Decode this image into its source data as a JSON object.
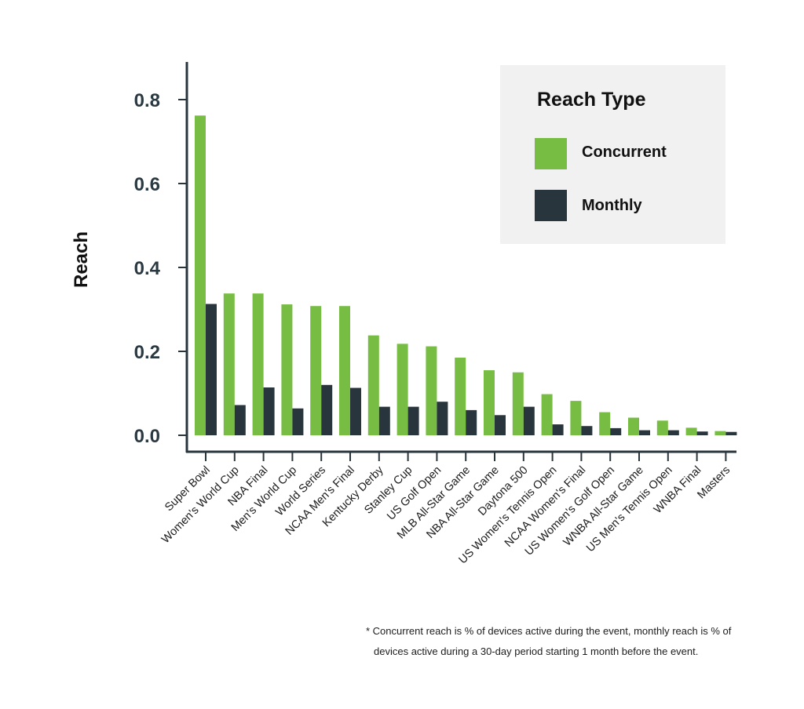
{
  "chart_data": {
    "type": "bar",
    "ylabel": "Reach",
    "xlabel": "",
    "ylim": [
      0,
      0.88
    ],
    "yticks": [
      "0.0",
      "0.2",
      "0.4",
      "0.6",
      "0.8"
    ],
    "ytick_values": [
      0.0,
      0.2,
      0.4,
      0.6,
      0.8
    ],
    "grid": false,
    "legend": {
      "title": "Reach Type",
      "placement": "top-right"
    },
    "categories": [
      "Super Bowl",
      "Women's World Cup",
      "NBA Final",
      "Men's World Cup",
      "World Series",
      "NCAA Men's Final",
      "Kentucky Derby",
      "Stanley Cup",
      "US Golf Open",
      "MLB All-Star Game",
      "NBA All-Star Game",
      "Daytona 500",
      "US Women's Tennis Open",
      "NCAA Women's Final",
      "US Women's Golf Open",
      "WNBA All-Star Game",
      "US Men's Tennis Open",
      "WNBA Final",
      "Masters"
    ],
    "series": [
      {
        "name": "Concurrent",
        "color": "#77bd43",
        "values": [
          0.762,
          0.338,
          0.338,
          0.312,
          0.308,
          0.308,
          0.238,
          0.218,
          0.212,
          0.185,
          0.155,
          0.15,
          0.098,
          0.082,
          0.055,
          0.042,
          0.035,
          0.018,
          0.01
        ]
      },
      {
        "name": "Monthly",
        "color": "#28353c",
        "values": [
          0.313,
          0.072,
          0.114,
          0.064,
          0.12,
          0.113,
          0.068,
          0.068,
          0.08,
          0.06,
          0.048,
          0.068,
          0.026,
          0.022,
          0.017,
          0.012,
          0.012,
          0.009,
          0.008
        ]
      }
    ]
  },
  "footnote": {
    "line1": "* Concurrent reach is % of devices active during the event, monthly reach is % of",
    "line2": "devices active during a 30-day period starting 1 month before the event."
  }
}
